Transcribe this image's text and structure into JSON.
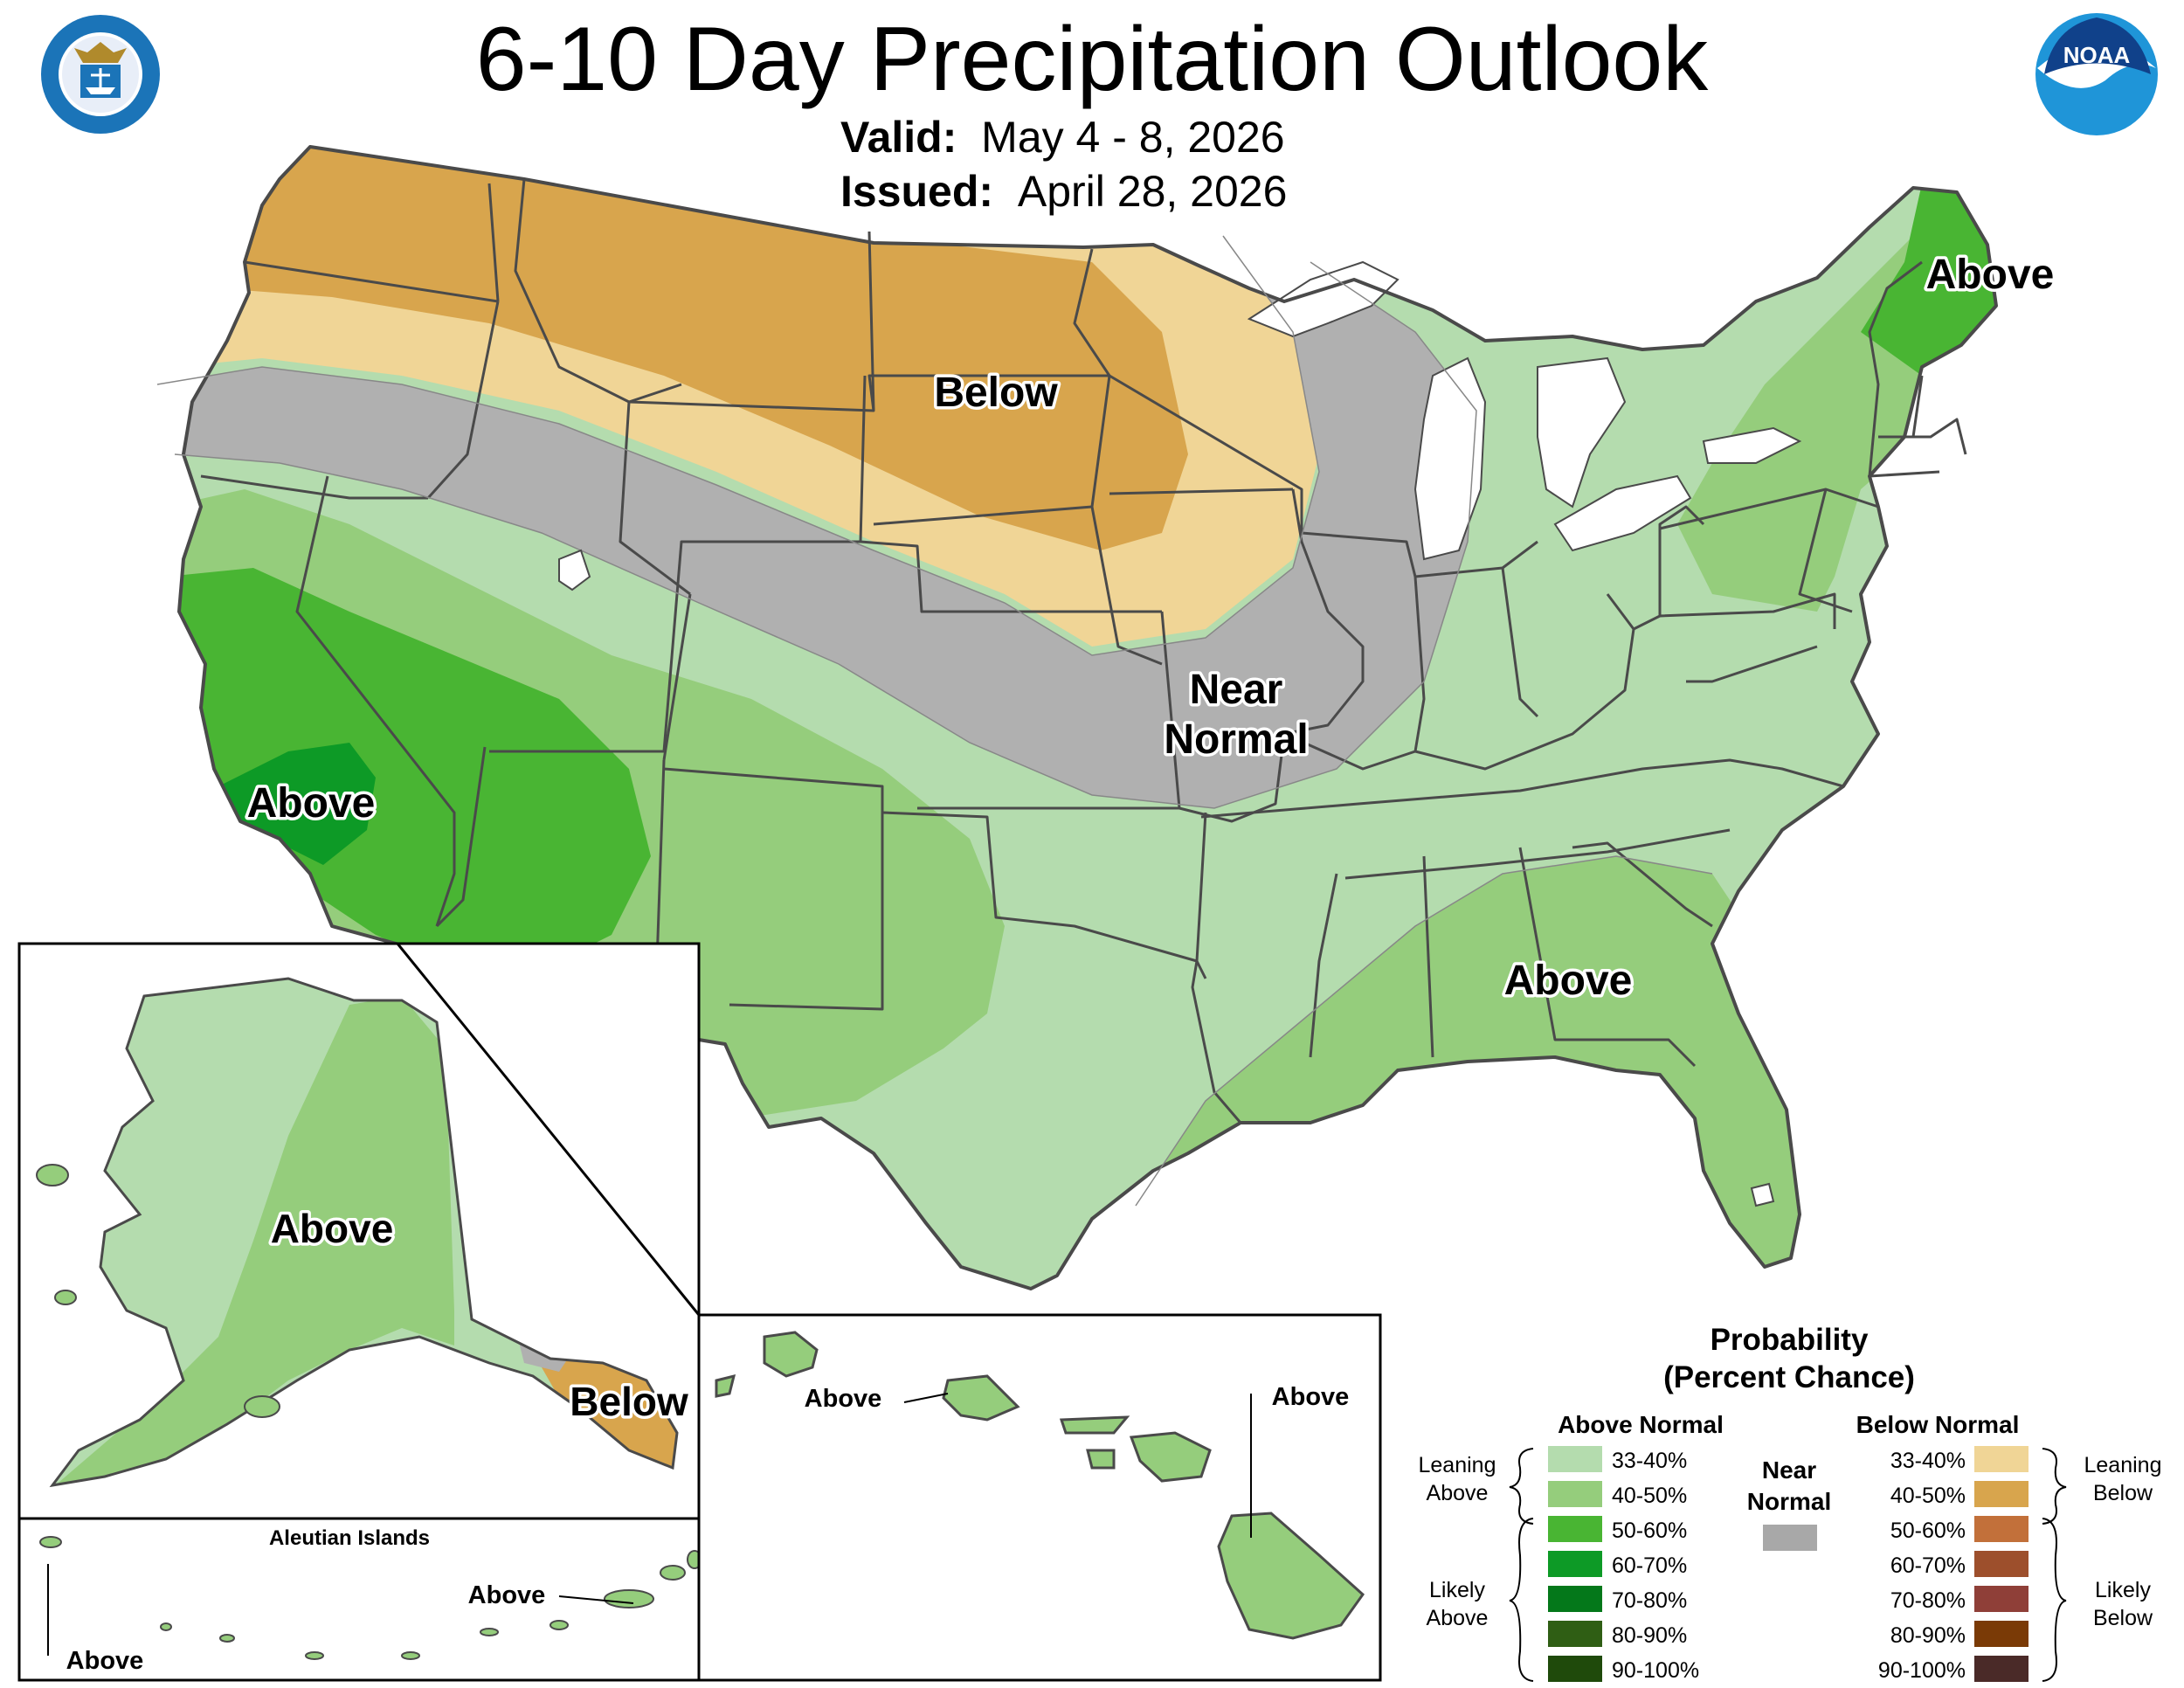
{
  "title": "6-10 Day Precipitation Outlook",
  "valid_label": "Valid:",
  "valid_value": "May 4 - 8, 2026",
  "issued_label": "Issued:",
  "issued_value": "April 28, 2026",
  "logos": {
    "left_seal_text": "DEPARTMENT OF COMMERCE · UNITED STATES OF AMERICA",
    "right_logo_text": "NOAA"
  },
  "map_labels": {
    "north_plains": "Below",
    "central": "Near",
    "central2": "Normal",
    "california": "Above",
    "southeast": "Above",
    "maine": "Above",
    "alaska": "Above",
    "alaska_se": "Below",
    "aleutian_title": "Aleutian Islands",
    "aleutian_east": "Above",
    "aleutian_west": "Above",
    "hawaii_west": "Above",
    "hawaii_east": "Above"
  },
  "legend": {
    "title1": "Probability",
    "title2": "(Percent Chance)",
    "above_header": "Above Normal",
    "below_header": "Below Normal",
    "near_header1": "Near",
    "near_header2": "Normal",
    "leaning_above1": "Leaning",
    "leaning_above2": "Above",
    "likely_above1": "Likely",
    "likely_above2": "Above",
    "leaning_below1": "Leaning",
    "leaning_below2": "Below",
    "likely_below1": "Likely",
    "likely_below2": "Below",
    "above_bins": [
      {
        "label": "33-40%",
        "color": "#b4dcae"
      },
      {
        "label": "40-50%",
        "color": "#95cd7c"
      },
      {
        "label": "50-60%",
        "color": "#49b533"
      },
      {
        "label": "60-70%",
        "color": "#0d9a26"
      },
      {
        "label": "70-80%",
        "color": "#04781a"
      },
      {
        "label": "80-90%",
        "color": "#2f5e14"
      },
      {
        "label": "90-100%",
        "color": "#1f4a0b"
      }
    ],
    "below_bins": [
      {
        "label": "33-40%",
        "color": "#f0d596"
      },
      {
        "label": "40-50%",
        "color": "#d8a54d"
      },
      {
        "label": "50-60%",
        "color": "#c2703a"
      },
      {
        "label": "60-70%",
        "color": "#9d4f2c"
      },
      {
        "label": "70-80%",
        "color": "#8f3f38"
      },
      {
        "label": "80-90%",
        "color": "#7a3a06"
      },
      {
        "label": "90-100%",
        "color": "#4a2a28"
      }
    ],
    "near_color": "#a8a8a8"
  },
  "colors": {
    "near_normal": "#b0b0b0",
    "lake": "#ffffff",
    "border": "#4a4a4a"
  }
}
